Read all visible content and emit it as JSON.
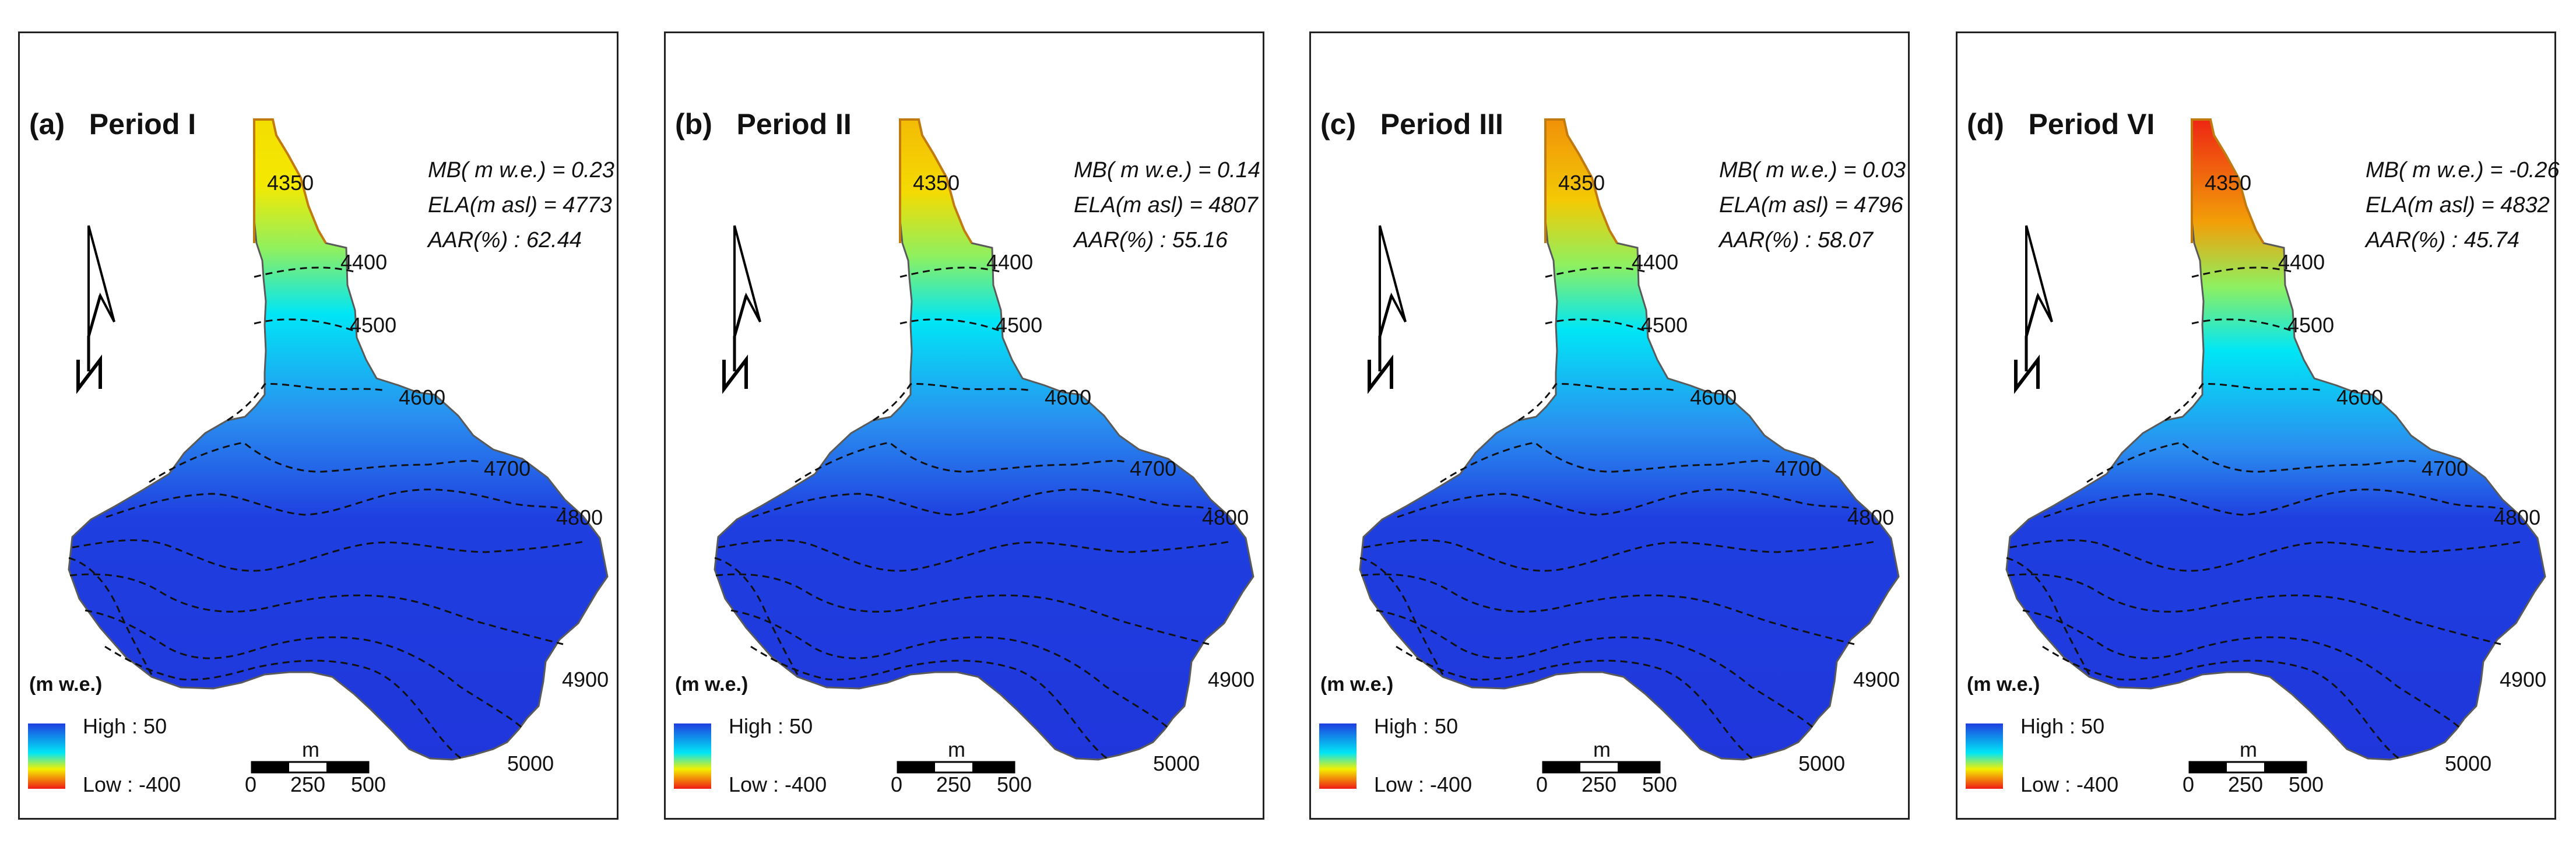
{
  "colors": {
    "high": "#1f3fe0",
    "mid": "#00e6f6",
    "yellow": "#f4f000",
    "low": "#ee1b14",
    "contour": "#111111"
  },
  "panels": [
    {
      "title": "(a)   Period I",
      "mb": "MB( m w.e.) = 0.23",
      "ela": "ELA(m asl) = 4773",
      "aar": "AAR(%) : 62.44",
      "mb_value": 0.23
    },
    {
      "title": "(b)   Period II",
      "mb": "MB( m w.e.) = 0.14",
      "ela": "ELA(m asl) = 4807",
      "aar": "AAR(%) : 55.16",
      "mb_value": 0.14
    },
    {
      "title": "(c)   Period III",
      "mb": "MB( m w.e.) = 0.03",
      "ela": "ELA(m asl) = 4796",
      "aar": "AAR(%) : 58.07",
      "mb_value": 0.03
    },
    {
      "title": "(d)   Period VI",
      "mb": "MB( m w.e.) = -0.26",
      "ela": "ELA(m asl) = 4832",
      "aar": "AAR(%) : 45.74",
      "mb_value": -0.26
    }
  ],
  "contour_labels": [
    "4350",
    "4400",
    "4500",
    "4600",
    "4700",
    "4800",
    "4900",
    "5000"
  ],
  "legend": {
    "unit": "(m w.e.)",
    "high": "High : 50",
    "low": "Low : -400"
  },
  "scale_bar": {
    "unit": "m",
    "ticks": [
      "0",
      "250",
      "500"
    ]
  }
}
